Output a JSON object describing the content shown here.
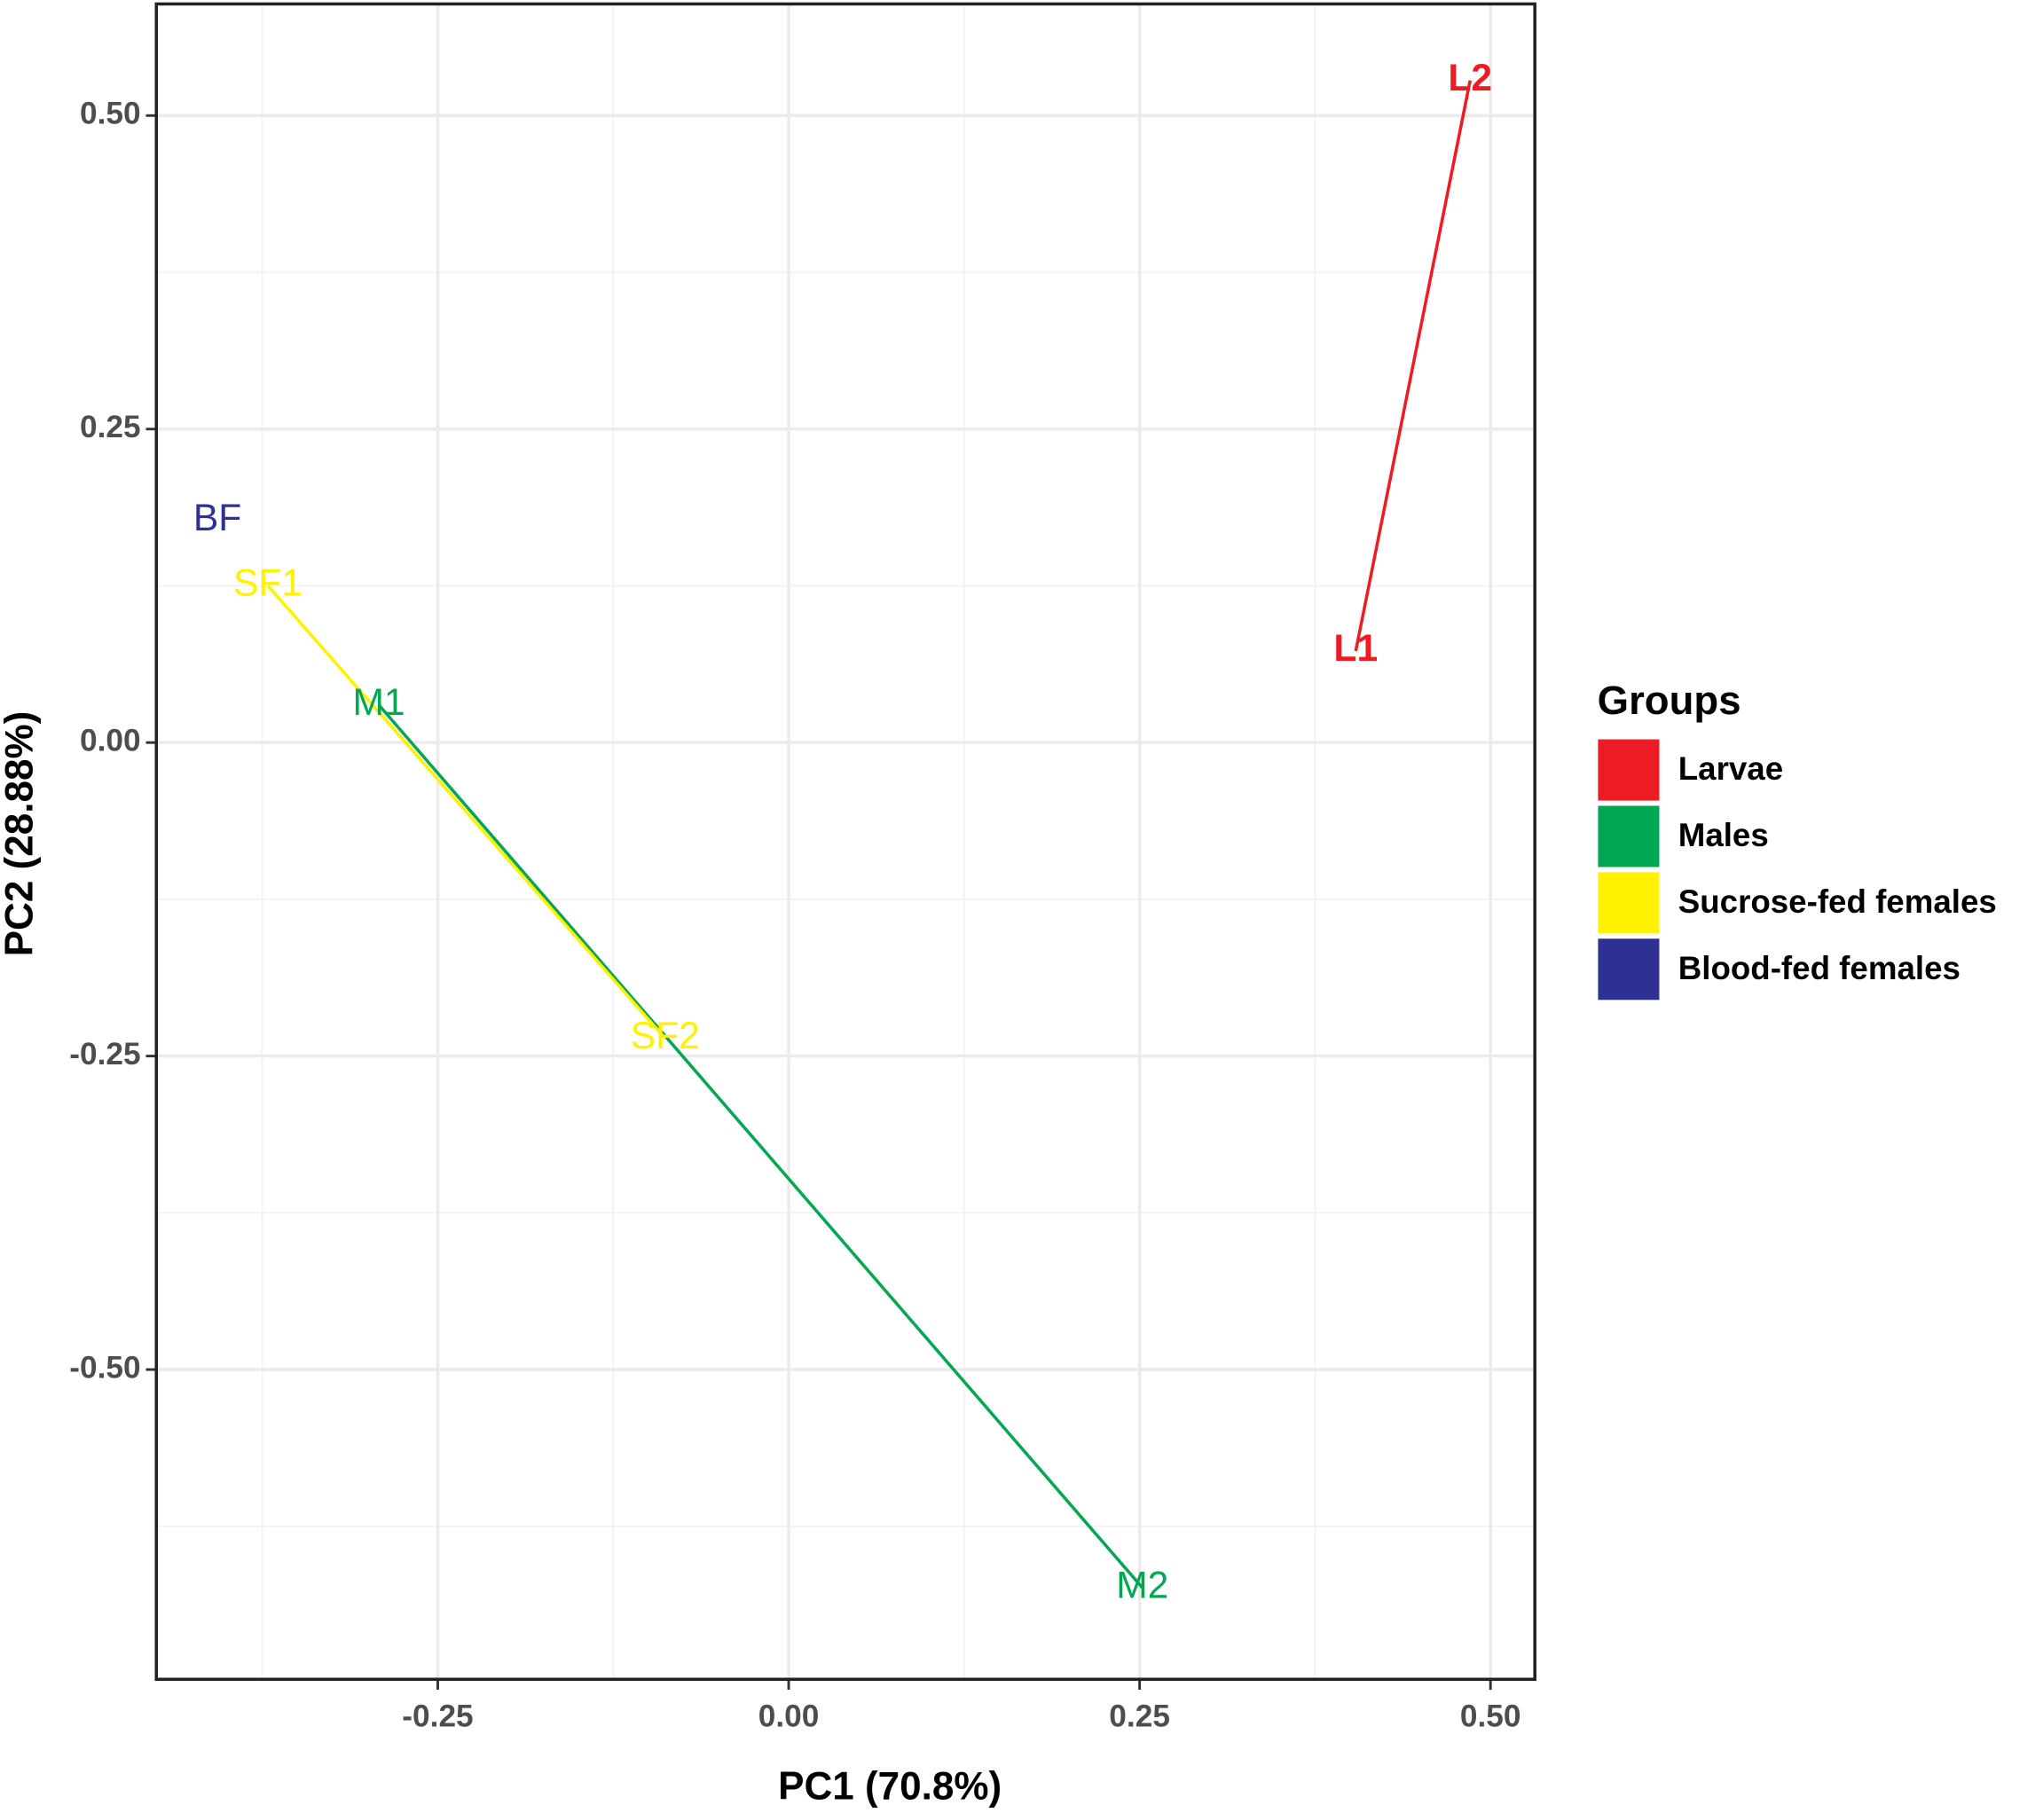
{
  "chart_data": {
    "type": "scatter",
    "xlabel": "PC1 (70.8%)",
    "ylabel": "PC2 (28.88%)",
    "legend_title": "Groups",
    "legend": "right",
    "xlim": [
      -0.4505,
      0.5316
    ],
    "ylim": [
      -0.747,
      0.589
    ],
    "xticks": [
      {
        "value": -0.25,
        "label": "-0.25"
      },
      {
        "value": 0,
        "label": "0.00"
      },
      {
        "value": 0.25,
        "label": "0.25"
      },
      {
        "value": 0.5,
        "label": "0.50"
      }
    ],
    "yticks": [
      {
        "value": -0.5,
        "label": "-0.50"
      },
      {
        "value": -0.25,
        "label": "-0.25"
      },
      {
        "value": 0,
        "label": "0.00"
      },
      {
        "value": 0.25,
        "label": "0.25"
      },
      {
        "value": 0.5,
        "label": "0.50"
      }
    ],
    "grid": true,
    "minor_grid": true,
    "series": [
      {
        "name": "Larvae",
        "color": "#ed1c24",
        "labels": [
          "L1",
          "L2"
        ],
        "x": [
          0.404,
          0.4855
        ],
        "values": [
          0.073,
          0.528
        ]
      },
      {
        "name": "Males",
        "color": "#00a651",
        "labels": [
          "M1",
          "M2"
        ],
        "x": [
          -0.292,
          0.252
        ],
        "values": [
          0.03,
          -0.674
        ]
      },
      {
        "name": "Sucrose-fed females",
        "color": "#fff200",
        "labels": [
          "SF1",
          "SF2"
        ],
        "x": [
          -0.371,
          -0.088
        ],
        "values": [
          0.125,
          -0.236
        ]
      },
      {
        "name": "Blood-fed females",
        "color": "#2e3192",
        "labels": [
          "BF"
        ],
        "x": [
          -0.407
        ],
        "values": [
          0.177
        ]
      }
    ]
  }
}
